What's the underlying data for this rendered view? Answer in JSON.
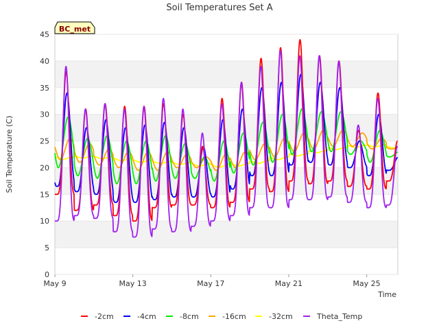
{
  "chart_data": {
    "type": "line",
    "title": "Soil Temperatures Set A",
    "xlabel": "Time",
    "ylabel": "Soil Temperature (C)",
    "badge": "BC_met",
    "ylim": [
      0,
      45
    ],
    "yticks": [
      0,
      5,
      10,
      15,
      20,
      25,
      30,
      35,
      40,
      45
    ],
    "x_range": [
      "May 9",
      "May 26.6"
    ],
    "x_tick_labels": [
      "May 9",
      "May 13",
      "May 17",
      "May 21",
      "May 25"
    ],
    "grid": "horizontal bands",
    "legend_position": "bottom",
    "days": [
      "May 9",
      "May 10",
      "May 11",
      "May 12",
      "May 13",
      "May 14",
      "May 15",
      "May 16",
      "May 17",
      "May 18",
      "May 19",
      "May 20",
      "May 21",
      "May 22",
      "May 23",
      "May 24",
      "May 25",
      "May 26"
    ],
    "series": [
      {
        "name": "-2cm",
        "color": "#ff0000",
        "daily_max": [
          38,
          31,
          32,
          31.5,
          31.5,
          32,
          30,
          24,
          33,
          36,
          40.5,
          42.5,
          44,
          41,
          40,
          27,
          34,
          25
        ],
        "daily_min": [
          15,
          12,
          13,
          11,
          10,
          12.5,
          13,
          13,
          12.5,
          13.5,
          16,
          15.5,
          17.5,
          17,
          17.5,
          16.5,
          16,
          17.5
        ]
      },
      {
        "name": "-4cm",
        "color": "#0000ff",
        "daily_max": [
          34,
          27.5,
          29,
          27.5,
          28,
          28.5,
          27.5,
          24,
          29,
          31,
          35,
          36,
          37.5,
          36,
          35,
          25,
          30,
          22
        ],
        "daily_min": [
          16.5,
          15.5,
          15,
          13.5,
          13.5,
          14,
          14.5,
          14.5,
          14.5,
          16,
          18.5,
          18.5,
          20.5,
          21,
          20.5,
          20,
          18.5,
          19.5
        ]
      },
      {
        "name": "-8cm",
        "color": "#00ee00",
        "daily_max": [
          29.5,
          25.5,
          26,
          25,
          25,
          26,
          24.5,
          22,
          25,
          26.5,
          28.5,
          30,
          31,
          30.5,
          30.5,
          25,
          27,
          23
        ],
        "daily_min": [
          20,
          18.5,
          18,
          17,
          17,
          17.5,
          18,
          18,
          17.5,
          19,
          20.5,
          21,
          22.5,
          23,
          23,
          22.5,
          21,
          22
        ]
      },
      {
        "name": "-16cm",
        "color": "#ffa500",
        "daily_max": [
          25.5,
          24.5,
          23.5,
          23,
          23,
          23,
          22.5,
          22,
          22.5,
          23,
          24.5,
          25.5,
          26.5,
          27,
          27,
          26.5,
          25.5,
          24
        ],
        "daily_min": [
          21.5,
          21,
          20.5,
          20,
          19.5,
          19.5,
          20,
          20,
          19.5,
          20,
          21.5,
          22,
          23,
          23.5,
          24,
          24,
          23.5,
          23.5
        ]
      },
      {
        "name": "-32cm",
        "color": "#ffff00",
        "daily_max": [
          22,
          22.2,
          22.1,
          21.8,
          21.5,
          21.2,
          21,
          20.8,
          20.6,
          20.8,
          21.3,
          22,
          22.6,
          23.2,
          23.8,
          24.2,
          24.3,
          24
        ],
        "daily_min": [
          21.6,
          21.8,
          21.7,
          21.3,
          21,
          20.8,
          20.6,
          20.3,
          20.1,
          20.3,
          20.8,
          21.5,
          22.2,
          22.8,
          23.4,
          23.8,
          23.9,
          23.7
        ]
      },
      {
        "name": "Theta_Temp",
        "color": "#a020f0",
        "daily_max": [
          39,
          31,
          32,
          31,
          31.5,
          33,
          31,
          26.5,
          32,
          36,
          39,
          42,
          41,
          41,
          40,
          28,
          33,
          24
        ],
        "daily_min": [
          10,
          11,
          10.5,
          8,
          7,
          8.5,
          8,
          9,
          10,
          11,
          12.5,
          12.5,
          14,
          14,
          14.5,
          13.5,
          12.5,
          13
        ]
      }
    ]
  }
}
